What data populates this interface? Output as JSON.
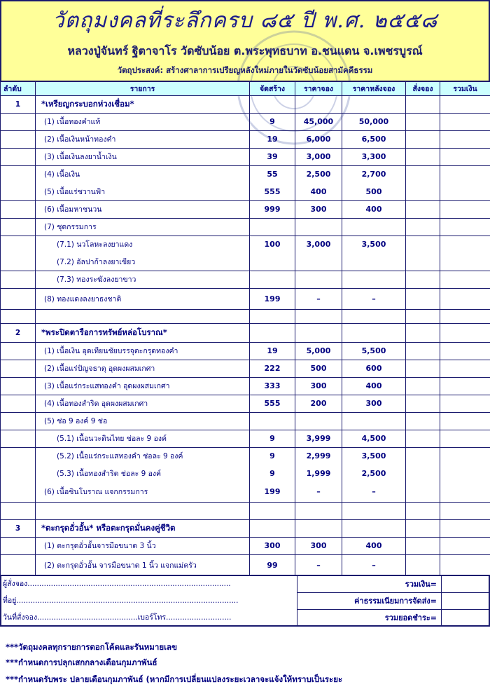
{
  "header": {
    "title": "วัตถุมงคลที่ระลึกครบ ๘๕ ปี พ.ศ. ๒๕๕๘",
    "subtitle": "หลวงปู่จันทร์ ฐิตาจาโร วัดซับน้อย ต.พระพุทธบาท อ.ชนแดน จ.เพชรบูรณ์",
    "purpose": "วัตถุประสงค์: สร้างศาลาการเปรียญหลังใหม่ภายในวัดซับน้อยสามัคคีธรรม"
  },
  "columns": [
    "ลำดับ",
    "รายการ",
    "จัดสร้าง",
    "ราคาจอง",
    "ราคาหลังจอง",
    "สั่งจอง",
    "รวมเงิน"
  ],
  "rows": [
    {
      "no": "1",
      "label": "*เหรียญกระบอกห่วงเชื่อม*",
      "section": true
    },
    {
      "label": "(1) เนื้อทองคำแท้",
      "qty": "9",
      "price": "45,000",
      "after": "50,000"
    },
    {
      "label": "(2) เนื้อเงินหน้าทองคำ",
      "qty": "19",
      "price": "6,000",
      "after": "6,500"
    },
    {
      "label": "(3) เนื้อเงินลงยาน้ำเงิน",
      "qty": "39",
      "price": "3,000",
      "after": "3,300"
    },
    {
      "label": "(4) เนื้อเงิน",
      "qty": "55",
      "price": "2,500",
      "after": "2,700"
    },
    {
      "label": "(5) เนื้อแร่ชวานฟ้า",
      "qty": "555",
      "price": "400",
      "after": "500"
    },
    {
      "label": "(6) เนื้อมหาชนวน",
      "qty": "999",
      "price": "300",
      "after": "400"
    },
    {
      "label": "(7) ชุดกรรมการ"
    },
    {
      "label": "(7.1) นวโลหะลงยาแดง",
      "sub": true,
      "qty": "100",
      "price": "3,000",
      "after": "3,500"
    },
    {
      "label": "(7.2) อัลปาก้าลงยาเขียว",
      "sub": true
    },
    {
      "label": "(7.3) ทองระฆังลงยาขาว",
      "sub": true
    },
    {
      "label": "(8) ทองแดงลงยาธงชาติ",
      "qty": "199",
      "price": "–",
      "after": "–"
    },
    {
      "label": ""
    },
    {
      "no": "2",
      "label": "*พระปิดตารือการทรัพย์หล่อโบราณ*",
      "section": true
    },
    {
      "label": "(1) เนื้อเงิน อุดเทียนชัยบรรจุตะกรุดทองคำ",
      "qty": "19",
      "price": "5,000",
      "after": "5,500"
    },
    {
      "label": "(2) เนื้อแร่ปัญจธาตุ อุดผงผสมเกศา",
      "qty": "222",
      "price": "500",
      "after": "600"
    },
    {
      "label": "(3) เนื้อแร่กระแสทองคำ อุดผงผสมเกศา",
      "qty": "333",
      "price": "300",
      "after": "400"
    },
    {
      "label": "(4) เนื้อทองสำริด อุดผงผสมเกศา",
      "qty": "555",
      "price": "200",
      "after": "300"
    },
    {
      "label": "(5) ช่อ 9 องค์ 9 ช่อ"
    },
    {
      "label": "(5.1) เนื้อนวะดินไทย ช่อละ 9 องค์",
      "sub": true,
      "qty": "9",
      "price": "3,999",
      "after": "4,500"
    },
    {
      "label": "(5.2) เนื้อแร่กระแสทองคำ ช่อละ 9 องค์",
      "sub": true,
      "qty": "9",
      "price": "2,999",
      "after": "3,500"
    },
    {
      "label": "(5.3) เนื้อทองสำริด ช่อละ 9 องค์",
      "sub": true,
      "qty": "9",
      "price": "1,999",
      "after": "2,500"
    },
    {
      "label": "(6) เนื้อชินโบราณ แจกกรรมการ",
      "qty": "199",
      "price": "–",
      "after": "–"
    },
    {
      "label": ""
    },
    {
      "no": "3",
      "label": "*ตะกรุดอั่วอั้น* หรือตะกรุดมั่นคงคู่ชีวิต",
      "section": true
    },
    {
      "label": "(1) ตะกรุดอั่วอั้นจารมือขนาด 3 นิ้ว",
      "qty": "300",
      "price": "300",
      "after": "400"
    },
    {
      "label": "(2) ตะกรุดอั่วอั้น จารมือขนาด 1 นิ้ว แจกแม่ครัว",
      "qty": "99",
      "price": "–",
      "after": "–"
    }
  ],
  "footer": {
    "orderer": "ผู้สั่งจอง.......................................................................................",
    "address": "ที่อยู่...............................................................................................",
    "date": "วันที่สั่งจอง...........................................เบอร์โทร............................",
    "total": "รวมเงิน=",
    "shipping": "ค่าธรรมเนียมการจัดส่ง=",
    "grand_total": "รวมยอดชำระ="
  },
  "notes": [
    "***วัตถุมงคลทุกรายการตอกโค้ดและรันหมายเลข",
    "***กำหนดการปลุกเสกกลางเดือนกุมภาพันธ์",
    "***กำหนดรับพระ ปลายเดือนกุมภาพันธ์   (หากมีการเปลี่ยนแปลงระยะเวลาจะแจ้งให้ทราบเป็นระยะ"
  ],
  "colors": {
    "header_bg": "#ffff99",
    "column_header_bg": "#ccffff",
    "text": "#000080"
  }
}
